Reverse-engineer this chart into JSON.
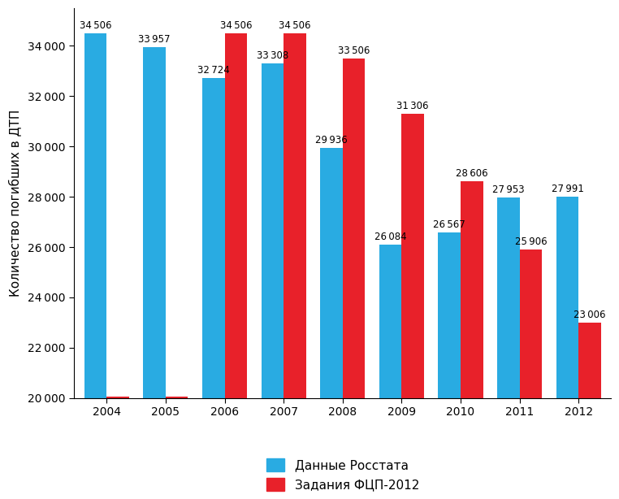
{
  "years": [
    2004,
    2005,
    2006,
    2007,
    2008,
    2009,
    2010,
    2011,
    2012
  ],
  "rosstat": [
    34506,
    33957,
    32724,
    33308,
    29936,
    26084,
    26567,
    27953,
    27991
  ],
  "fcp": [
    20050,
    20050,
    34506,
    34506,
    33506,
    31306,
    28606,
    25906,
    23006
  ],
  "rosstat_color": "#29ABE2",
  "fcp_color": "#E8212A",
  "ylabel": "Количество погибших в ДТП",
  "ylim": [
    20000,
    35500
  ],
  "yticks": [
    20000,
    22000,
    24000,
    26000,
    28000,
    30000,
    32000,
    34000
  ],
  "legend_rosstat": "Данные Росстата",
  "legend_fcp": "Задания ФЦП-2012",
  "bar_width": 0.38,
  "label_fontsize": 8.5,
  "axis_fontsize": 11,
  "tick_fontsize": 10,
  "legend_fontsize": 11,
  "fcp_label_min": 21000
}
